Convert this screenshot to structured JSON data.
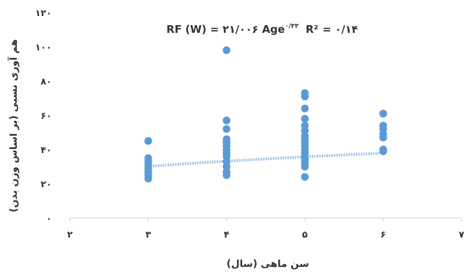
{
  "chart_data": {
    "type": "scatter",
    "title": "",
    "equation": {
      "lhs": "RF (W) = ۲۱/۰۰۶ Age",
      "exp": "۰/۳۳",
      "r2_label": "R²",
      "r2_value": "= ۰/۱۴"
    },
    "xlabel": "سن ماهی (سال)",
    "ylabel": "هم آوری نسبی (بر اساس وزن بدن)",
    "xlim": [
      2,
      7
    ],
    "ylim": [
      0,
      120
    ],
    "xticks": [
      2,
      3,
      4,
      5,
      6,
      7
    ],
    "xtick_labels": [
      "۲",
      "۳",
      "۴",
      "۵",
      "۶",
      "۷"
    ],
    "yticks": [
      0,
      20,
      40,
      60,
      80,
      100,
      120
    ],
    "ytick_labels": [
      "۰",
      "۲۰",
      "۴۰",
      "۶۰",
      "۸۰",
      "۱۰۰",
      "۱۲۰"
    ],
    "grid": false,
    "legend": "none",
    "series": [
      {
        "points": [
          {
            "x": 3,
            "y": 45
          },
          {
            "x": 3,
            "y": 35
          },
          {
            "x": 3,
            "y": 33
          },
          {
            "x": 3,
            "y": 31
          },
          {
            "x": 3,
            "y": 29
          },
          {
            "x": 3,
            "y": 27
          },
          {
            "x": 3,
            "y": 25
          },
          {
            "x": 3,
            "y": 23
          },
          {
            "x": 4,
            "y": 98
          },
          {
            "x": 4,
            "y": 57
          },
          {
            "x": 4,
            "y": 52
          },
          {
            "x": 4,
            "y": 46
          },
          {
            "x": 4,
            "y": 44
          },
          {
            "x": 4,
            "y": 42
          },
          {
            "x": 4,
            "y": 40
          },
          {
            "x": 4,
            "y": 38
          },
          {
            "x": 4,
            "y": 36
          },
          {
            "x": 4,
            "y": 33
          },
          {
            "x": 4,
            "y": 30
          },
          {
            "x": 4,
            "y": 27
          },
          {
            "x": 4,
            "y": 25
          },
          {
            "x": 5,
            "y": 73
          },
          {
            "x": 5,
            "y": 71
          },
          {
            "x": 5,
            "y": 64
          },
          {
            "x": 5,
            "y": 58
          },
          {
            "x": 5,
            "y": 54
          },
          {
            "x": 5,
            "y": 51
          },
          {
            "x": 5,
            "y": 48
          },
          {
            "x": 5,
            "y": 46
          },
          {
            "x": 5,
            "y": 44
          },
          {
            "x": 5,
            "y": 42
          },
          {
            "x": 5,
            "y": 40
          },
          {
            "x": 5,
            "y": 38
          },
          {
            "x": 5,
            "y": 36
          },
          {
            "x": 5,
            "y": 34
          },
          {
            "x": 5,
            "y": 32
          },
          {
            "x": 5,
            "y": 30
          },
          {
            "x": 5,
            "y": 24
          },
          {
            "x": 6,
            "y": 61
          },
          {
            "x": 6,
            "y": 54
          },
          {
            "x": 6,
            "y": 52
          },
          {
            "x": 6,
            "y": 49
          },
          {
            "x": 6,
            "y": 47
          },
          {
            "x": 6,
            "y": 40
          },
          {
            "x": 6,
            "y": 39
          }
        ]
      }
    ],
    "trendline": {
      "type": "power",
      "a": 21.006,
      "b": 0.33,
      "x_from": 3,
      "x_to": 6
    },
    "colors": {
      "marker": "#5b9bd5",
      "trend": "#9dc3e6",
      "axis": "#d0d0d0",
      "text": "#333333"
    }
  }
}
